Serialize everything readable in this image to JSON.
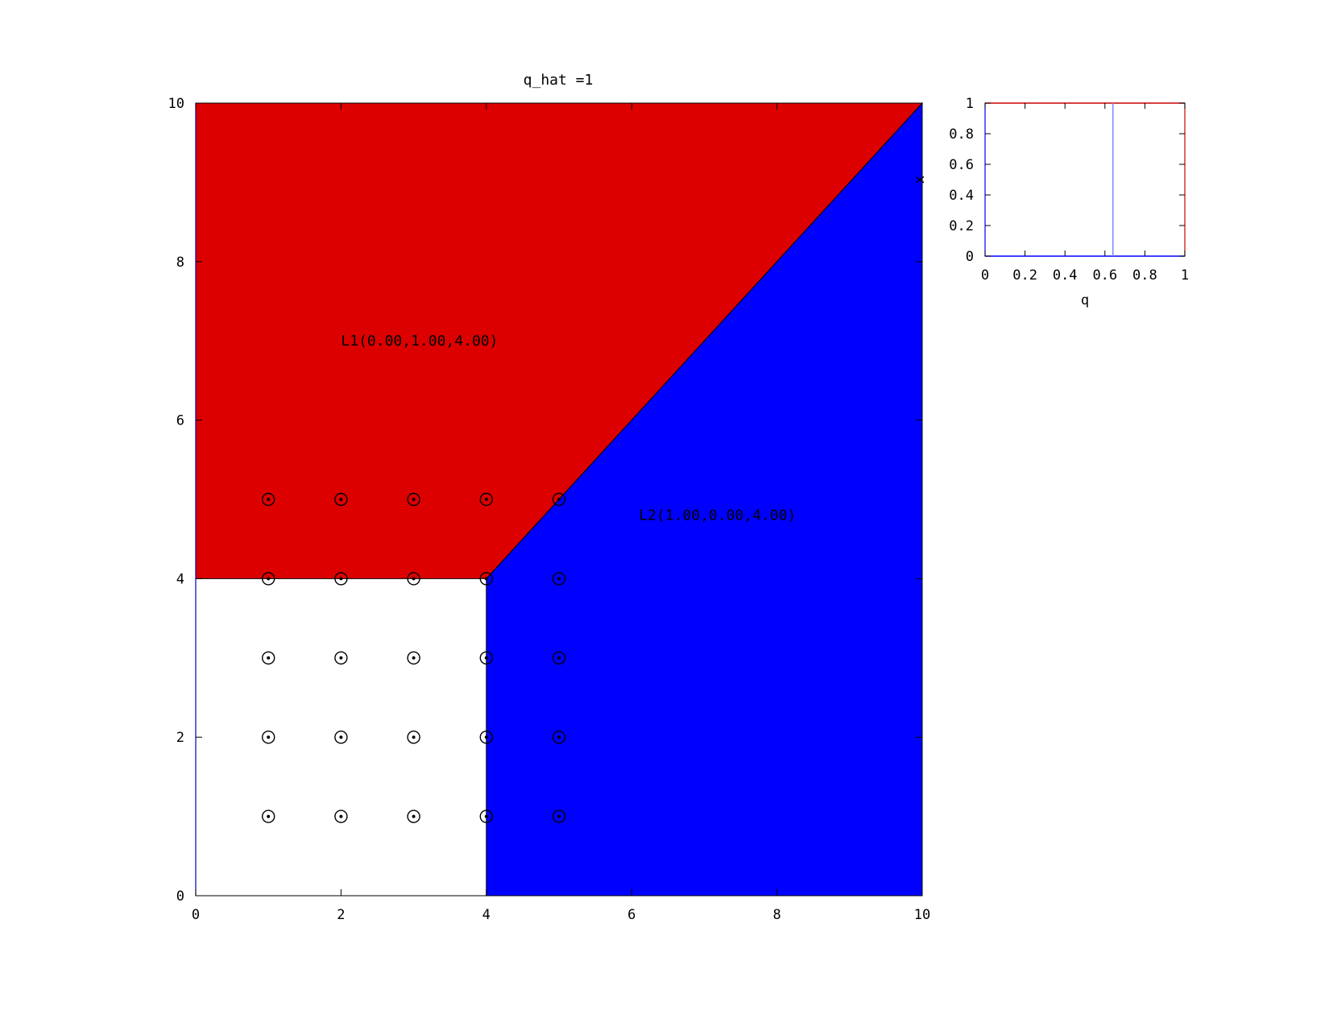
{
  "chart_data": [
    {
      "type": "area",
      "title": "q_hat =1",
      "xlabel": "",
      "ylabel": "",
      "xlim": [
        0,
        10
      ],
      "ylim": [
        0,
        10
      ],
      "xticks": [
        "0",
        "2",
        "4",
        "6",
        "8",
        "10"
      ],
      "yticks": [
        "0",
        "2",
        "4",
        "6",
        "8",
        "10"
      ],
      "regions": [
        {
          "label": "L1(0.00,1.00,4.00)",
          "color": "#dd0000",
          "polygon": [
            [
              0,
              4
            ],
            [
              4,
              4
            ],
            [
              10,
              10
            ],
            [
              0,
              10
            ]
          ],
          "label_at": [
            2,
            7
          ]
        },
        {
          "label": "L2(1.00,0.00,4.00)",
          "color": "#0000ff",
          "polygon": [
            [
              4,
              0
            ],
            [
              10,
              0
            ],
            [
              10,
              10
            ],
            [
              4,
              4
            ]
          ],
          "label_at": [
            6.1,
            4.8
          ]
        }
      ],
      "points": {
        "marker": "circled-dot",
        "x": [
          1,
          2,
          3,
          4,
          5
        ],
        "y": [
          1,
          2,
          3,
          4,
          5
        ]
      }
    },
    {
      "type": "line",
      "xlabel": "q",
      "ylabel": "x",
      "xlim": [
        0,
        1
      ],
      "ylim": [
        0,
        1
      ],
      "xticks": [
        "0",
        "0.2",
        "0.4",
        "0.6",
        "0.8",
        "1"
      ],
      "yticks": [
        "0",
        "0.2",
        "0.4",
        "0.6",
        "0.8",
        "1"
      ],
      "vline_q": 0.64,
      "colors": {
        "top_line": "#cc0000",
        "bottom_line": "#0000ff",
        "vline": "#8888ff"
      }
    }
  ]
}
